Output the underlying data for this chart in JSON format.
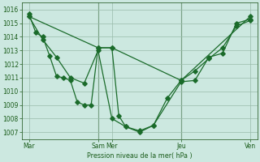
{
  "background_color": "#cce8e0",
  "grid_color": "#99bbaa",
  "line_color": "#1a6b2a",
  "vline_color": "#336633",
  "xtick_labels": [
    "Mar",
    "Sam",
    "Mer",
    "Jeu",
    "Ven"
  ],
  "xtick_positions": [
    0,
    10,
    12,
    22,
    32
  ],
  "ylabel": "Pression niveau de la mer( hPa )",
  "xlim": [
    -1,
    33
  ],
  "ylim": [
    1006.5,
    1016.5
  ],
  "yticks": [
    1007,
    1008,
    1009,
    1010,
    1011,
    1012,
    1013,
    1014,
    1015,
    1016
  ],
  "line1_x": [
    0,
    1,
    2,
    3,
    4,
    5,
    6,
    7,
    8,
    9,
    10,
    12,
    13,
    14,
    16,
    18,
    22,
    24,
    26,
    28,
    30,
    32
  ],
  "line1_y": [
    1015.7,
    1014.3,
    1014.0,
    1012.6,
    1011.1,
    1011.0,
    1010.8,
    1009.2,
    1009.0,
    1009.0,
    1013.2,
    1013.2,
    1008.2,
    1007.4,
    1007.0,
    1007.5,
    1010.7,
    1010.8,
    1012.5,
    1012.8,
    1015.0,
    1015.3
  ],
  "line2_x": [
    0,
    10,
    12,
    22,
    32
  ],
  "line2_y": [
    1015.5,
    1013.2,
    1013.2,
    1010.8,
    1015.5
  ],
  "line3_x": [
    0,
    2,
    4,
    6,
    8,
    10,
    12,
    14,
    16,
    18,
    20,
    22,
    24,
    26,
    28,
    30,
    32
  ],
  "line3_y": [
    1015.5,
    1013.8,
    1012.5,
    1011.0,
    1010.6,
    1013.0,
    1008.0,
    1007.4,
    1007.1,
    1007.5,
    1009.5,
    1010.8,
    1011.5,
    1012.4,
    1013.2,
    1014.8,
    1015.2
  ],
  "vline_positions": [
    10,
    22
  ]
}
